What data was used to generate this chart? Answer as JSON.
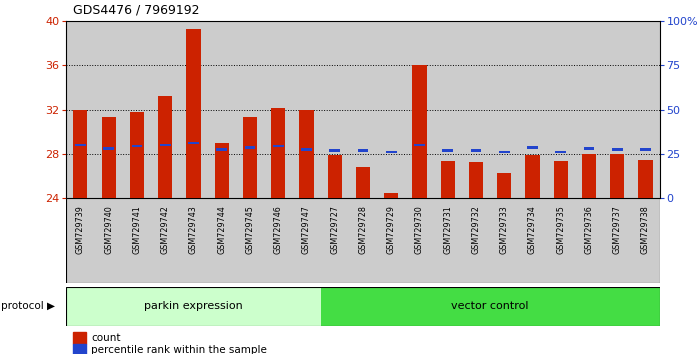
{
  "title": "GDS4476 / 7969192",
  "samples": [
    "GSM729739",
    "GSM729740",
    "GSM729741",
    "GSM729742",
    "GSM729743",
    "GSM729744",
    "GSM729745",
    "GSM729746",
    "GSM729747",
    "GSM729727",
    "GSM729728",
    "GSM729729",
    "GSM729730",
    "GSM729731",
    "GSM729732",
    "GSM729733",
    "GSM729734",
    "GSM729735",
    "GSM729736",
    "GSM729737",
    "GSM729738"
  ],
  "count_values": [
    32.0,
    31.3,
    31.8,
    33.2,
    39.3,
    29.0,
    31.3,
    32.2,
    32.0,
    27.9,
    26.8,
    24.5,
    36.0,
    27.4,
    27.3,
    26.3,
    27.9,
    27.4,
    28.0,
    28.0,
    27.5
  ],
  "percentile_values": [
    28.8,
    28.5,
    28.7,
    28.8,
    29.0,
    28.4,
    28.6,
    28.7,
    28.4,
    28.3,
    28.3,
    28.2,
    28.8,
    28.3,
    28.3,
    28.2,
    28.6,
    28.2,
    28.5,
    28.4,
    28.4
  ],
  "parkin_count": 9,
  "vector_count": 12,
  "ylim_left": [
    24,
    40
  ],
  "ylim_right": [
    0,
    100
  ],
  "yticks_left": [
    24,
    28,
    32,
    36,
    40
  ],
  "yticks_right": [
    0,
    25,
    50,
    75,
    100
  ],
  "bar_color": "#cc2200",
  "percentile_color": "#2244cc",
  "parkin_bg": "#ccffcc",
  "vector_bg": "#44dd44",
  "sample_bg": "#cccccc",
  "chart_bg": "#ffffff",
  "bar_bottom": 24,
  "legend_count_label": "count",
  "legend_percentile_label": "percentile rank within the sample",
  "parkin_label": "parkin expression",
  "vector_label": "vector control",
  "protocol_label": "protocol"
}
